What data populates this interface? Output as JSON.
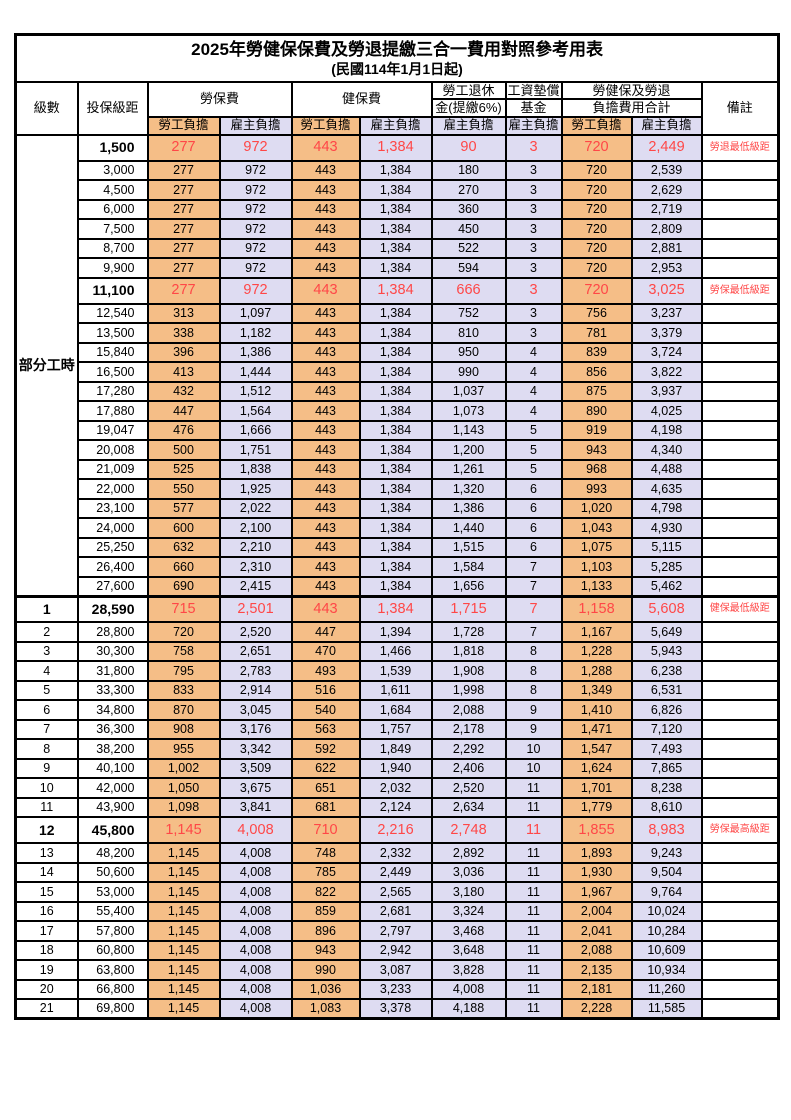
{
  "title": "2025年勞健保保費及勞退提繳三合一費用對照參考用表",
  "subtitle": "(民國114年1月1日起)",
  "header": {
    "level": "級數",
    "bracket": "投保級距",
    "labor_insurance": "勞保費",
    "health_insurance": "健保費",
    "pension_line1": "勞工退休",
    "pension_line2": "金(提繳6%)",
    "wage_fund_line1": "工資墊償",
    "wage_fund_line2": "基金",
    "total_line1": "勞健保及勞退",
    "total_line2": "負擔費用合計",
    "note": "備註",
    "employee": "勞工負擔",
    "employer": "雇主負擔"
  },
  "part_time_label": "部分工時",
  "colors": {
    "employee_bg": "#F5BE87",
    "employer_bg": "#DEDCF2",
    "highlight_text": "#FF4747"
  },
  "rows": [
    {
      "level": "",
      "bracket": "1,500",
      "values": [
        "277",
        "972",
        "443",
        "1,384",
        "90",
        "3",
        "720",
        "2,449"
      ],
      "note": "勞退最低級距",
      "highlight": true
    },
    {
      "level": "",
      "bracket": "3,000",
      "values": [
        "277",
        "972",
        "443",
        "1,384",
        "180",
        "3",
        "720",
        "2,539"
      ]
    },
    {
      "level": "",
      "bracket": "4,500",
      "values": [
        "277",
        "972",
        "443",
        "1,384",
        "270",
        "3",
        "720",
        "2,629"
      ]
    },
    {
      "level": "",
      "bracket": "6,000",
      "values": [
        "277",
        "972",
        "443",
        "1,384",
        "360",
        "3",
        "720",
        "2,719"
      ]
    },
    {
      "level": "",
      "bracket": "7,500",
      "values": [
        "277",
        "972",
        "443",
        "1,384",
        "450",
        "3",
        "720",
        "2,809"
      ]
    },
    {
      "level": "",
      "bracket": "8,700",
      "values": [
        "277",
        "972",
        "443",
        "1,384",
        "522",
        "3",
        "720",
        "2,881"
      ]
    },
    {
      "level": "",
      "bracket": "9,900",
      "values": [
        "277",
        "972",
        "443",
        "1,384",
        "594",
        "3",
        "720",
        "2,953"
      ]
    },
    {
      "level": "",
      "bracket": "11,100",
      "values": [
        "277",
        "972",
        "443",
        "1,384",
        "666",
        "3",
        "720",
        "3,025"
      ],
      "note": "勞保最低級距",
      "highlight": true
    },
    {
      "level": "",
      "bracket": "12,540",
      "values": [
        "313",
        "1,097",
        "443",
        "1,384",
        "752",
        "3",
        "756",
        "3,237"
      ]
    },
    {
      "level": "",
      "bracket": "13,500",
      "values": [
        "338",
        "1,182",
        "443",
        "1,384",
        "810",
        "3",
        "781",
        "3,379"
      ]
    },
    {
      "level": "",
      "bracket": "15,840",
      "values": [
        "396",
        "1,386",
        "443",
        "1,384",
        "950",
        "4",
        "839",
        "3,724"
      ]
    },
    {
      "level": "",
      "bracket": "16,500",
      "values": [
        "413",
        "1,444",
        "443",
        "1,384",
        "990",
        "4",
        "856",
        "3,822"
      ]
    },
    {
      "level": "",
      "bracket": "17,280",
      "values": [
        "432",
        "1,512",
        "443",
        "1,384",
        "1,037",
        "4",
        "875",
        "3,937"
      ]
    },
    {
      "level": "",
      "bracket": "17,880",
      "values": [
        "447",
        "1,564",
        "443",
        "1,384",
        "1,073",
        "4",
        "890",
        "4,025"
      ]
    },
    {
      "level": "",
      "bracket": "19,047",
      "values": [
        "476",
        "1,666",
        "443",
        "1,384",
        "1,143",
        "5",
        "919",
        "4,198"
      ]
    },
    {
      "level": "",
      "bracket": "20,008",
      "values": [
        "500",
        "1,751",
        "443",
        "1,384",
        "1,200",
        "5",
        "943",
        "4,340"
      ]
    },
    {
      "level": "",
      "bracket": "21,009",
      "values": [
        "525",
        "1,838",
        "443",
        "1,384",
        "1,261",
        "5",
        "968",
        "4,488"
      ]
    },
    {
      "level": "",
      "bracket": "22,000",
      "values": [
        "550",
        "1,925",
        "443",
        "1,384",
        "1,320",
        "6",
        "993",
        "4,635"
      ]
    },
    {
      "level": "",
      "bracket": "23,100",
      "values": [
        "577",
        "2,022",
        "443",
        "1,384",
        "1,386",
        "6",
        "1,020",
        "4,798"
      ]
    },
    {
      "level": "",
      "bracket": "24,000",
      "values": [
        "600",
        "2,100",
        "443",
        "1,384",
        "1,440",
        "6",
        "1,043",
        "4,930"
      ]
    },
    {
      "level": "",
      "bracket": "25,250",
      "values": [
        "632",
        "2,210",
        "443",
        "1,384",
        "1,515",
        "6",
        "1,075",
        "5,115"
      ]
    },
    {
      "level": "",
      "bracket": "26,400",
      "values": [
        "660",
        "2,310",
        "443",
        "1,384",
        "1,584",
        "7",
        "1,103",
        "5,285"
      ]
    },
    {
      "level": "",
      "bracket": "27,600",
      "values": [
        "690",
        "2,415",
        "443",
        "1,384",
        "1,656",
        "7",
        "1,133",
        "5,462"
      ]
    },
    {
      "level": "1",
      "bracket": "28,590",
      "values": [
        "715",
        "2,501",
        "443",
        "1,384",
        "1,715",
        "7",
        "1,158",
        "5,608"
      ],
      "note": "健保最低級距",
      "highlight": true,
      "section": true
    },
    {
      "level": "2",
      "bracket": "28,800",
      "values": [
        "720",
        "2,520",
        "447",
        "1,394",
        "1,728",
        "7",
        "1,167",
        "5,649"
      ]
    },
    {
      "level": "3",
      "bracket": "30,300",
      "values": [
        "758",
        "2,651",
        "470",
        "1,466",
        "1,818",
        "8",
        "1,228",
        "5,943"
      ]
    },
    {
      "level": "4",
      "bracket": "31,800",
      "values": [
        "795",
        "2,783",
        "493",
        "1,539",
        "1,908",
        "8",
        "1,288",
        "6,238"
      ]
    },
    {
      "level": "5",
      "bracket": "33,300",
      "values": [
        "833",
        "2,914",
        "516",
        "1,611",
        "1,998",
        "8",
        "1,349",
        "6,531"
      ]
    },
    {
      "level": "6",
      "bracket": "34,800",
      "values": [
        "870",
        "3,045",
        "540",
        "1,684",
        "2,088",
        "9",
        "1,410",
        "6,826"
      ]
    },
    {
      "level": "7",
      "bracket": "36,300",
      "values": [
        "908",
        "3,176",
        "563",
        "1,757",
        "2,178",
        "9",
        "1,471",
        "7,120"
      ]
    },
    {
      "level": "8",
      "bracket": "38,200",
      "values": [
        "955",
        "3,342",
        "592",
        "1,849",
        "2,292",
        "10",
        "1,547",
        "7,493"
      ]
    },
    {
      "level": "9",
      "bracket": "40,100",
      "values": [
        "1,002",
        "3,509",
        "622",
        "1,940",
        "2,406",
        "10",
        "1,624",
        "7,865"
      ]
    },
    {
      "level": "10",
      "bracket": "42,000",
      "values": [
        "1,050",
        "3,675",
        "651",
        "2,032",
        "2,520",
        "11",
        "1,701",
        "8,238"
      ]
    },
    {
      "level": "11",
      "bracket": "43,900",
      "values": [
        "1,098",
        "3,841",
        "681",
        "2,124",
        "2,634",
        "11",
        "1,779",
        "8,610"
      ]
    },
    {
      "level": "12",
      "bracket": "45,800",
      "values": [
        "1,145",
        "4,008",
        "710",
        "2,216",
        "2,748",
        "11",
        "1,855",
        "8,983"
      ],
      "note": "勞保最高級距",
      "highlight": true
    },
    {
      "level": "13",
      "bracket": "48,200",
      "values": [
        "1,145",
        "4,008",
        "748",
        "2,332",
        "2,892",
        "11",
        "1,893",
        "9,243"
      ]
    },
    {
      "level": "14",
      "bracket": "50,600",
      "values": [
        "1,145",
        "4,008",
        "785",
        "2,449",
        "3,036",
        "11",
        "1,930",
        "9,504"
      ]
    },
    {
      "level": "15",
      "bracket": "53,000",
      "values": [
        "1,145",
        "4,008",
        "822",
        "2,565",
        "3,180",
        "11",
        "1,967",
        "9,764"
      ]
    },
    {
      "level": "16",
      "bracket": "55,400",
      "values": [
        "1,145",
        "4,008",
        "859",
        "2,681",
        "3,324",
        "11",
        "2,004",
        "10,024"
      ]
    },
    {
      "level": "17",
      "bracket": "57,800",
      "values": [
        "1,145",
        "4,008",
        "896",
        "2,797",
        "3,468",
        "11",
        "2,041",
        "10,284"
      ]
    },
    {
      "level": "18",
      "bracket": "60,800",
      "values": [
        "1,145",
        "4,008",
        "943",
        "2,942",
        "3,648",
        "11",
        "2,088",
        "10,609"
      ]
    },
    {
      "level": "19",
      "bracket": "63,800",
      "values": [
        "1,145",
        "4,008",
        "990",
        "3,087",
        "3,828",
        "11",
        "2,135",
        "10,934"
      ]
    },
    {
      "level": "20",
      "bracket": "66,800",
      "values": [
        "1,145",
        "4,008",
        "1,036",
        "3,233",
        "4,008",
        "11",
        "2,181",
        "11,260"
      ]
    },
    {
      "level": "21",
      "bracket": "69,800",
      "values": [
        "1,145",
        "4,008",
        "1,083",
        "3,378",
        "4,188",
        "11",
        "2,228",
        "11,585"
      ]
    }
  ]
}
